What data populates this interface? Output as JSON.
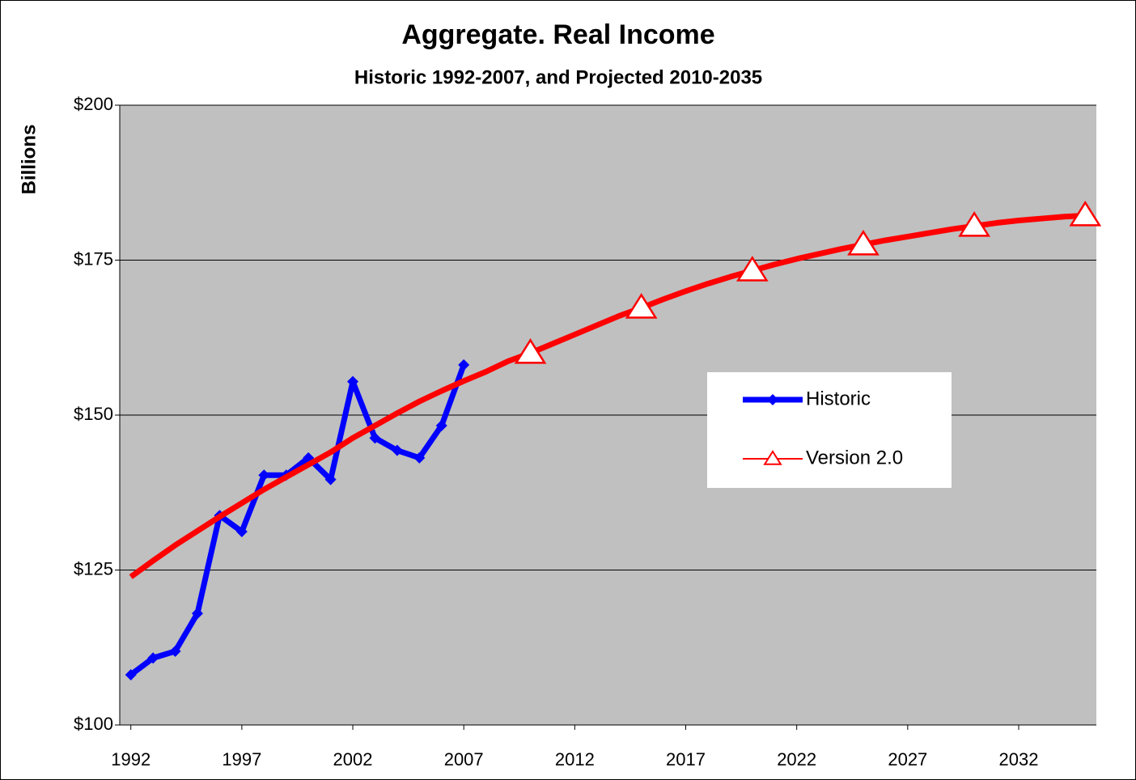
{
  "chart_data": {
    "type": "line",
    "title": "Aggregate. Real Income",
    "subtitle": "Historic 1992-2007, and Projected 2010-2035",
    "ylabel": "Billions",
    "xlim": [
      1991.5,
      2035.5
    ],
    "xticks": [
      1992,
      1997,
      2002,
      2007,
      2012,
      2017,
      2022,
      2027,
      2032
    ],
    "ylim": [
      100,
      200
    ],
    "yticks": [
      {
        "value": 100,
        "label": "$100"
      },
      {
        "value": 125,
        "label": "$125"
      },
      {
        "value": 150,
        "label": "$150"
      },
      {
        "value": 175,
        "label": "$175"
      },
      {
        "value": 200,
        "label": "$200"
      }
    ],
    "grid": true,
    "series": [
      {
        "name": "Historic",
        "color": "#0000ff",
        "marker": "diamond",
        "x": [
          1992,
          1993,
          1994,
          1995,
          1996,
          1997,
          1998,
          1999,
          2000,
          2001,
          2002,
          2003,
          2004,
          2005,
          2006,
          2007
        ],
        "values": [
          108.1,
          110.8,
          111.9,
          118.0,
          133.8,
          131.2,
          140.3,
          140.3,
          143.1,
          139.6,
          155.4,
          146.3,
          144.3,
          143.1,
          148.3,
          158.1
        ]
      },
      {
        "name": "Version 2.0",
        "color": "#ff0000",
        "marker": "triangle",
        "x": [
          1992,
          1993,
          1994,
          1995,
          1996,
          1997,
          1998,
          1999,
          2000,
          2001,
          2002,
          2003,
          2004,
          2005,
          2006,
          2007,
          2008,
          2009,
          2010,
          2011,
          2012,
          2013,
          2014,
          2015,
          2016,
          2017,
          2018,
          2019,
          2020,
          2021,
          2022,
          2023,
          2024,
          2025,
          2026,
          2027,
          2028,
          2029,
          2030,
          2031,
          2032,
          2033,
          2034,
          2035
        ],
        "values": [
          123.9,
          126.5,
          129.0,
          131.3,
          133.6,
          135.8,
          138.0,
          140.0,
          142.0,
          144.0,
          146.3,
          148.3,
          150.3,
          152.2,
          153.9,
          155.5,
          157.0,
          158.7,
          160.0,
          161.5,
          163.0,
          164.5,
          166.0,
          167.3,
          168.7,
          170.0,
          171.2,
          172.3,
          173.3,
          174.3,
          175.2,
          176.0,
          176.8,
          177.5,
          178.2,
          178.8,
          179.4,
          180.0,
          180.5,
          181.0,
          181.4,
          181.7,
          182.0,
          182.2
        ],
        "marker_x": [
          2010,
          2015,
          2020,
          2025,
          2030,
          2035
        ]
      }
    ],
    "legend": "right"
  }
}
